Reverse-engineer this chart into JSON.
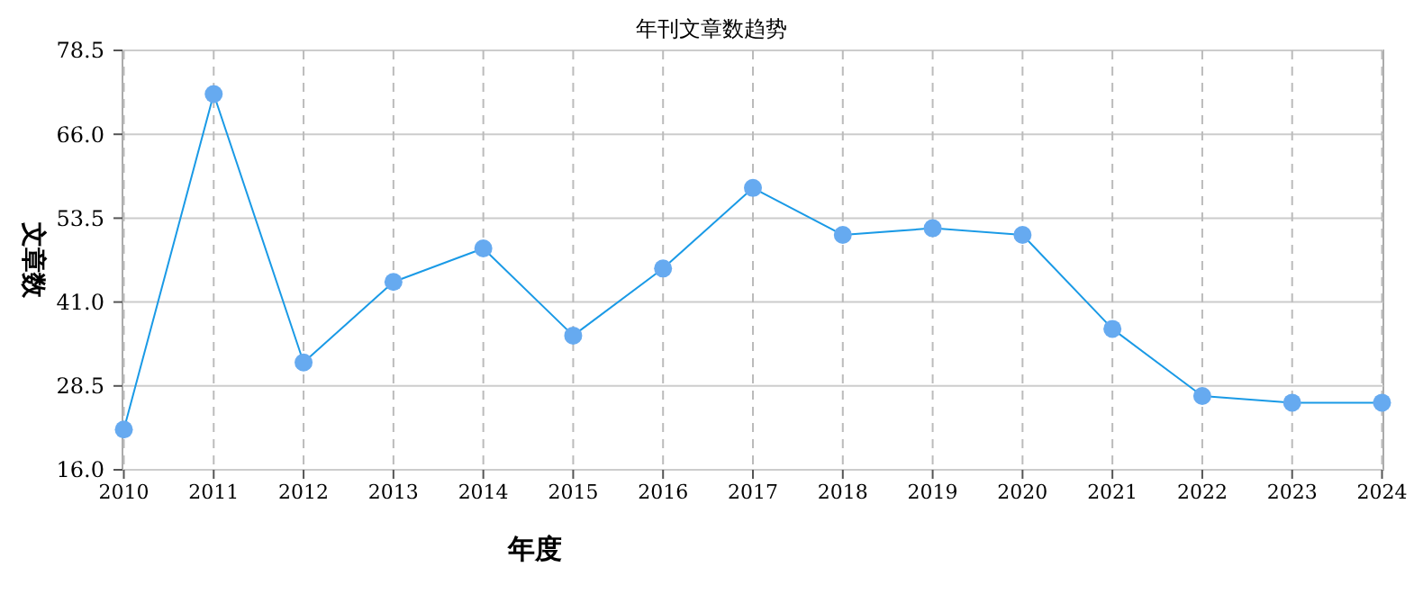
{
  "chart_data": {
    "type": "line",
    "title": "年刊文章数趋势",
    "xlabel": "年度",
    "ylabel": "文章数",
    "categories": [
      "2010",
      "2011",
      "2012",
      "2013",
      "2014",
      "2015",
      "2016",
      "2017",
      "2018",
      "2019",
      "2020",
      "2021",
      "2022",
      "2023",
      "2024"
    ],
    "series": [
      {
        "color": "#1a9ae6",
        "values": [
          22,
          72,
          32,
          44,
          49,
          36,
          46,
          58,
          51,
          52,
          51,
          37,
          27,
          26,
          26
        ]
      }
    ],
    "ylim": [
      16,
      78.5
    ],
    "yticks": [
      {
        "value": 16,
        "label": "16.0"
      },
      {
        "value": 28.5,
        "label": "28.5"
      },
      {
        "value": 41,
        "label": "41.0"
      },
      {
        "value": 53.5,
        "label": "53.5"
      },
      {
        "value": 66,
        "label": "66.0"
      },
      {
        "value": 78.5,
        "label": "78.5"
      }
    ],
    "grid": true,
    "marker": "circle",
    "line_style": "solid"
  }
}
